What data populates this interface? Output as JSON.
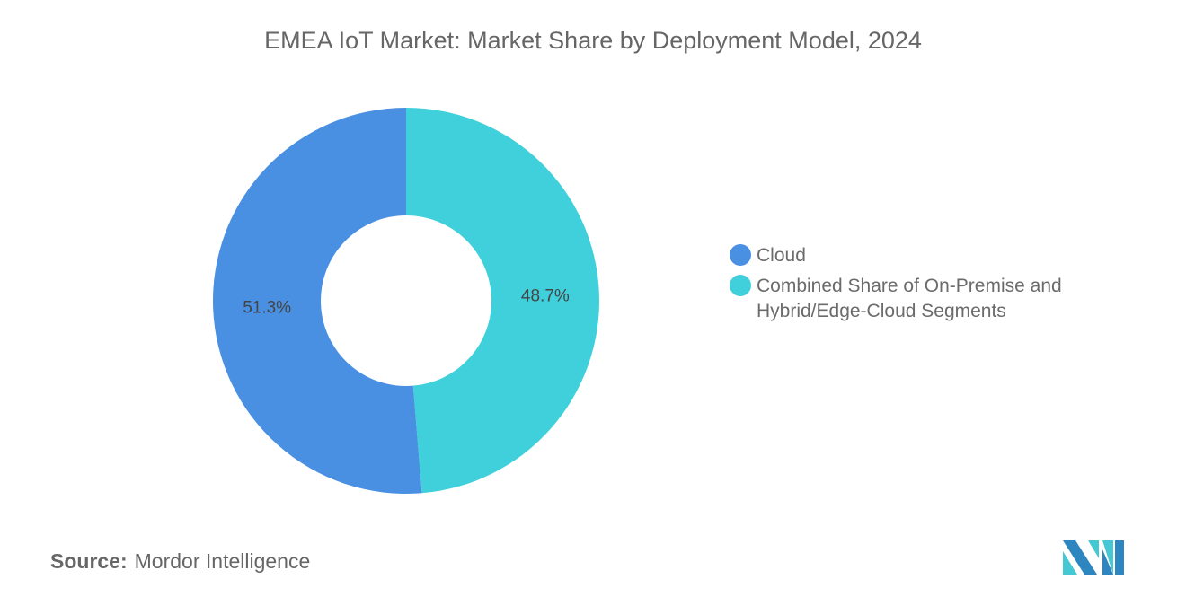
{
  "chart_data": {
    "type": "pie",
    "variant": "donut",
    "title": "EMEA IoT Market: Market Share by Deployment Model, 2024",
    "categories": [
      "Cloud",
      "Combined Share of On-Premise and Hybrid/Edge-Cloud Segments"
    ],
    "values": [
      51.3,
      48.7
    ],
    "unit": "%",
    "data_labels": [
      "51.3%",
      "48.7%"
    ],
    "colors": [
      "#4A90E2",
      "#40D0DB"
    ],
    "legend_position": "right"
  },
  "source": {
    "label": "Source:",
    "value": "Mordor Intelligence"
  },
  "logo": {
    "text": "Mordor Intelligence"
  }
}
